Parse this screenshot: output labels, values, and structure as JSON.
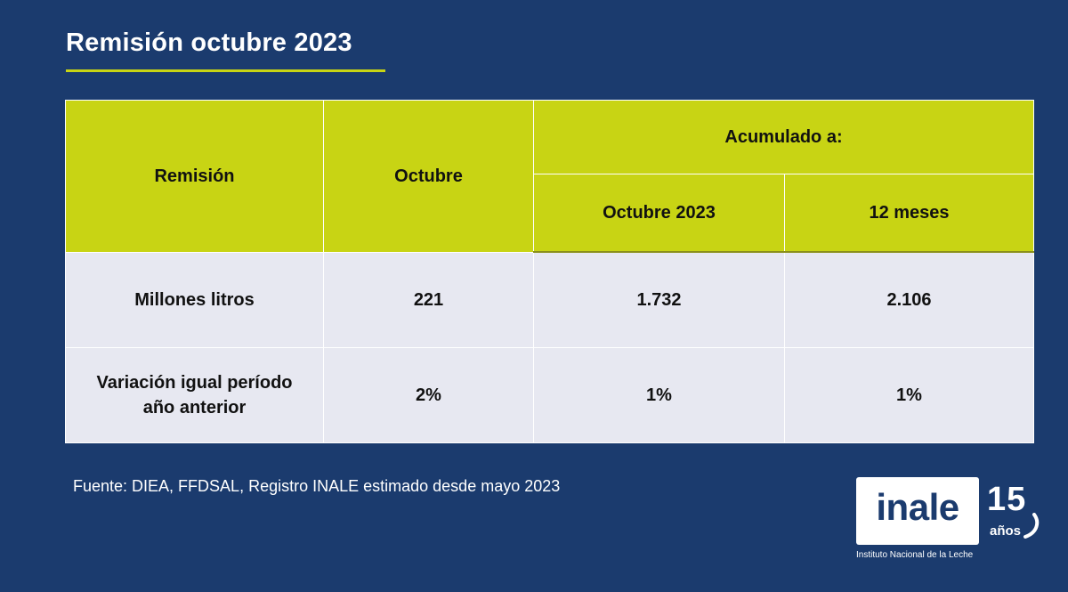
{
  "title": "Remisión octubre 2023",
  "table": {
    "headers": {
      "col1": "Remisión",
      "col2": "Octubre",
      "group": "Acumulado a:",
      "sub1": "Octubre 2023",
      "sub2": "12 meses"
    },
    "rows": [
      {
        "label": "Millones litros",
        "values": [
          "221",
          "1.732",
          "2.106"
        ]
      },
      {
        "label_line1": "Variación igual período",
        "label_line2": "año anterior",
        "values": [
          "2%",
          "1%",
          "1%"
        ]
      }
    ]
  },
  "source": "Fuente: DIEA, FFDSAL, Registro INALE estimado desde mayo 2023",
  "logo": {
    "word": "inale",
    "number": "15",
    "years": "años",
    "subtitle": "Instituto Nacional de la Leche"
  },
  "colors": {
    "background": "#1b3b6e",
    "accent": "#c8d414",
    "row_bg": "#e7e8f1"
  }
}
